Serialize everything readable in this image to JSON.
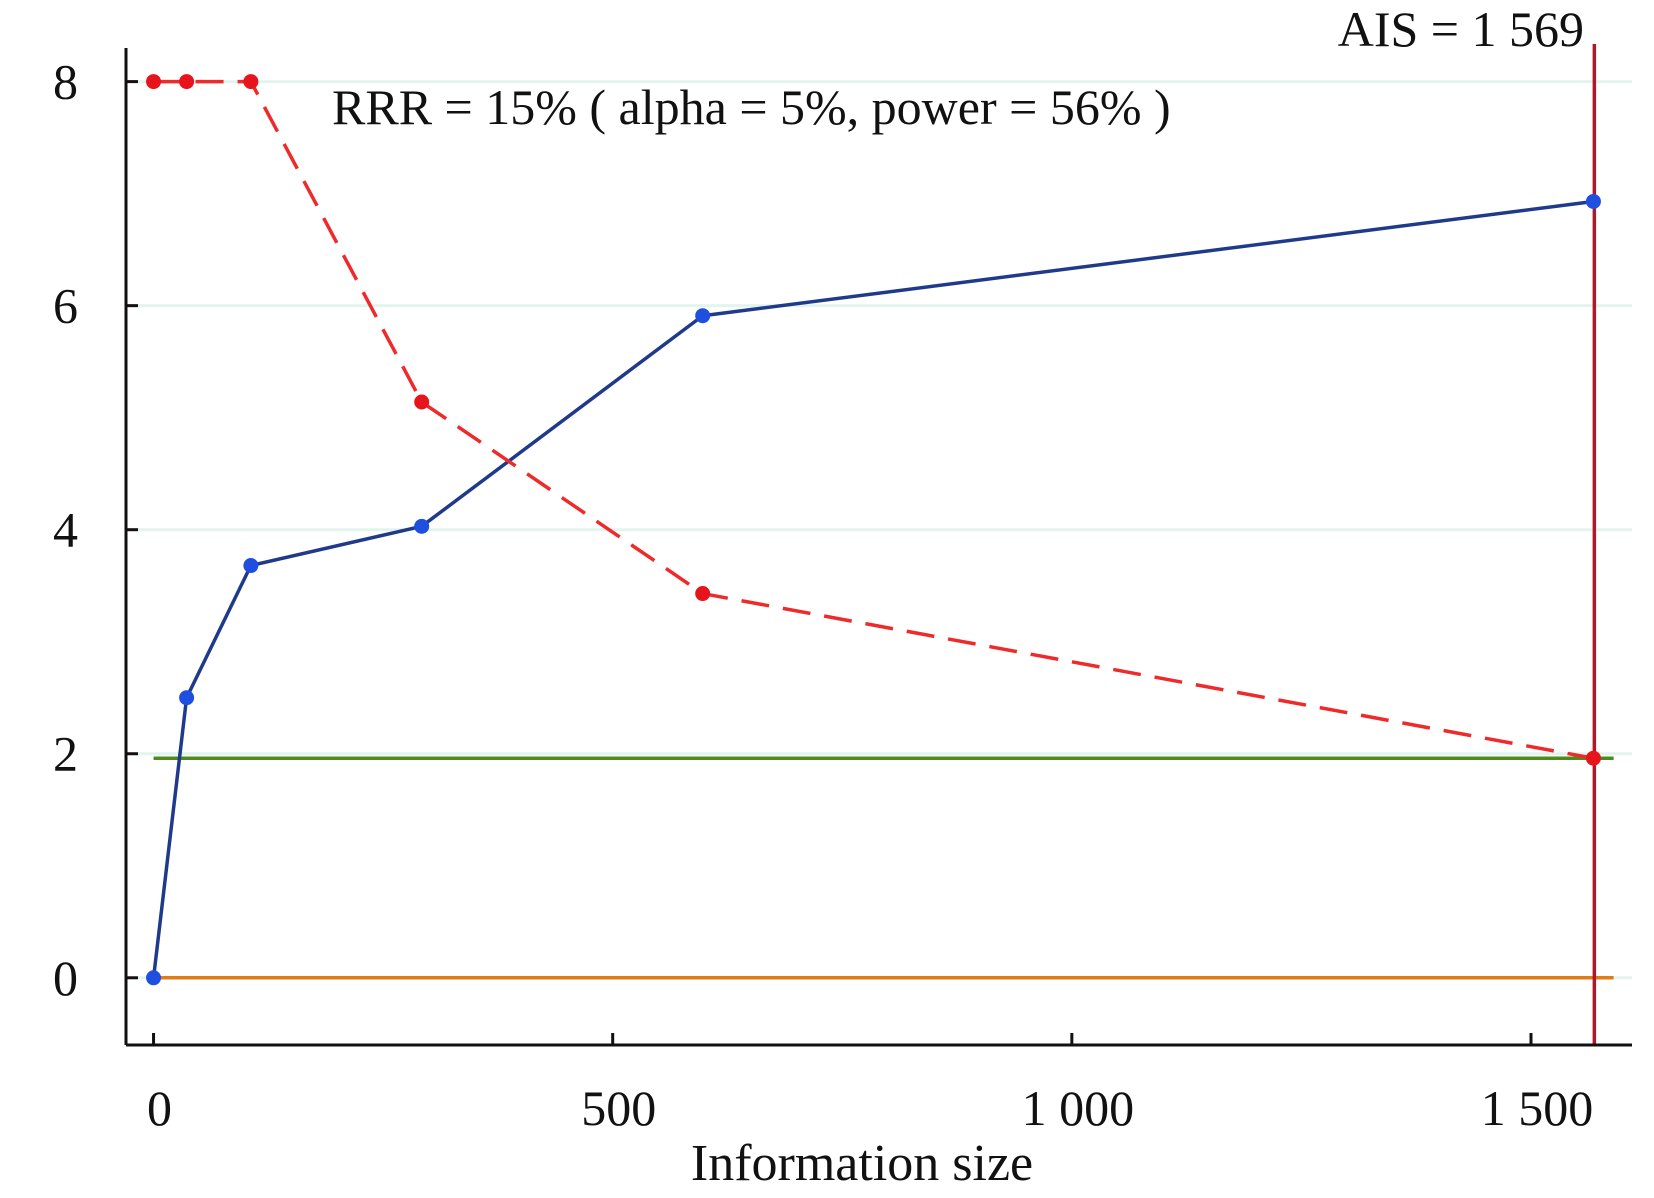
{
  "chart_data": {
    "type": "line",
    "title": "",
    "xlabel": "Information size",
    "ylabel": "",
    "xlim": [
      -30,
      1610
    ],
    "ylim": [
      -0.6,
      8.3
    ],
    "x_ticks": [
      0,
      500,
      1000,
      1500
    ],
    "x_tick_labels": [
      "0",
      "500",
      "1 000",
      "1 500"
    ],
    "y_ticks": [
      0,
      2,
      4,
      6,
      8
    ],
    "y_tick_labels": [
      "0",
      "2",
      "4",
      "6",
      "8"
    ],
    "grid": "horizontal at y ticks, light",
    "legend": "none",
    "series": [
      {
        "style": "solid",
        "color": "#1f3a8a",
        "marker_color": "#1e4fe0",
        "x": [
          0,
          36,
          106,
          292,
          598,
          1568
        ],
        "y": [
          0.0,
          2.5,
          3.68,
          4.03,
          5.91,
          6.93
        ]
      },
      {
        "style": "dashed",
        "color": "#ee2a2a",
        "marker_color": "#e8141c",
        "x": [
          0,
          36,
          106,
          292,
          598,
          1568
        ],
        "y": [
          8.0,
          8.0,
          8.0,
          5.14,
          3.43,
          1.96
        ]
      }
    ],
    "reference_lines": [
      {
        "orientation": "horizontal",
        "value": 1.96,
        "color": "#4e8a1e"
      },
      {
        "orientation": "horizontal",
        "value": 0,
        "color": "#e07b1a"
      },
      {
        "orientation": "vertical",
        "value": 1569,
        "color": "#b0182a"
      }
    ],
    "annotations": {
      "ais_label": "AIS = 1 569",
      "rrr_label": "RRR = 15% ( alpha = 5%, power = 56% )"
    }
  }
}
